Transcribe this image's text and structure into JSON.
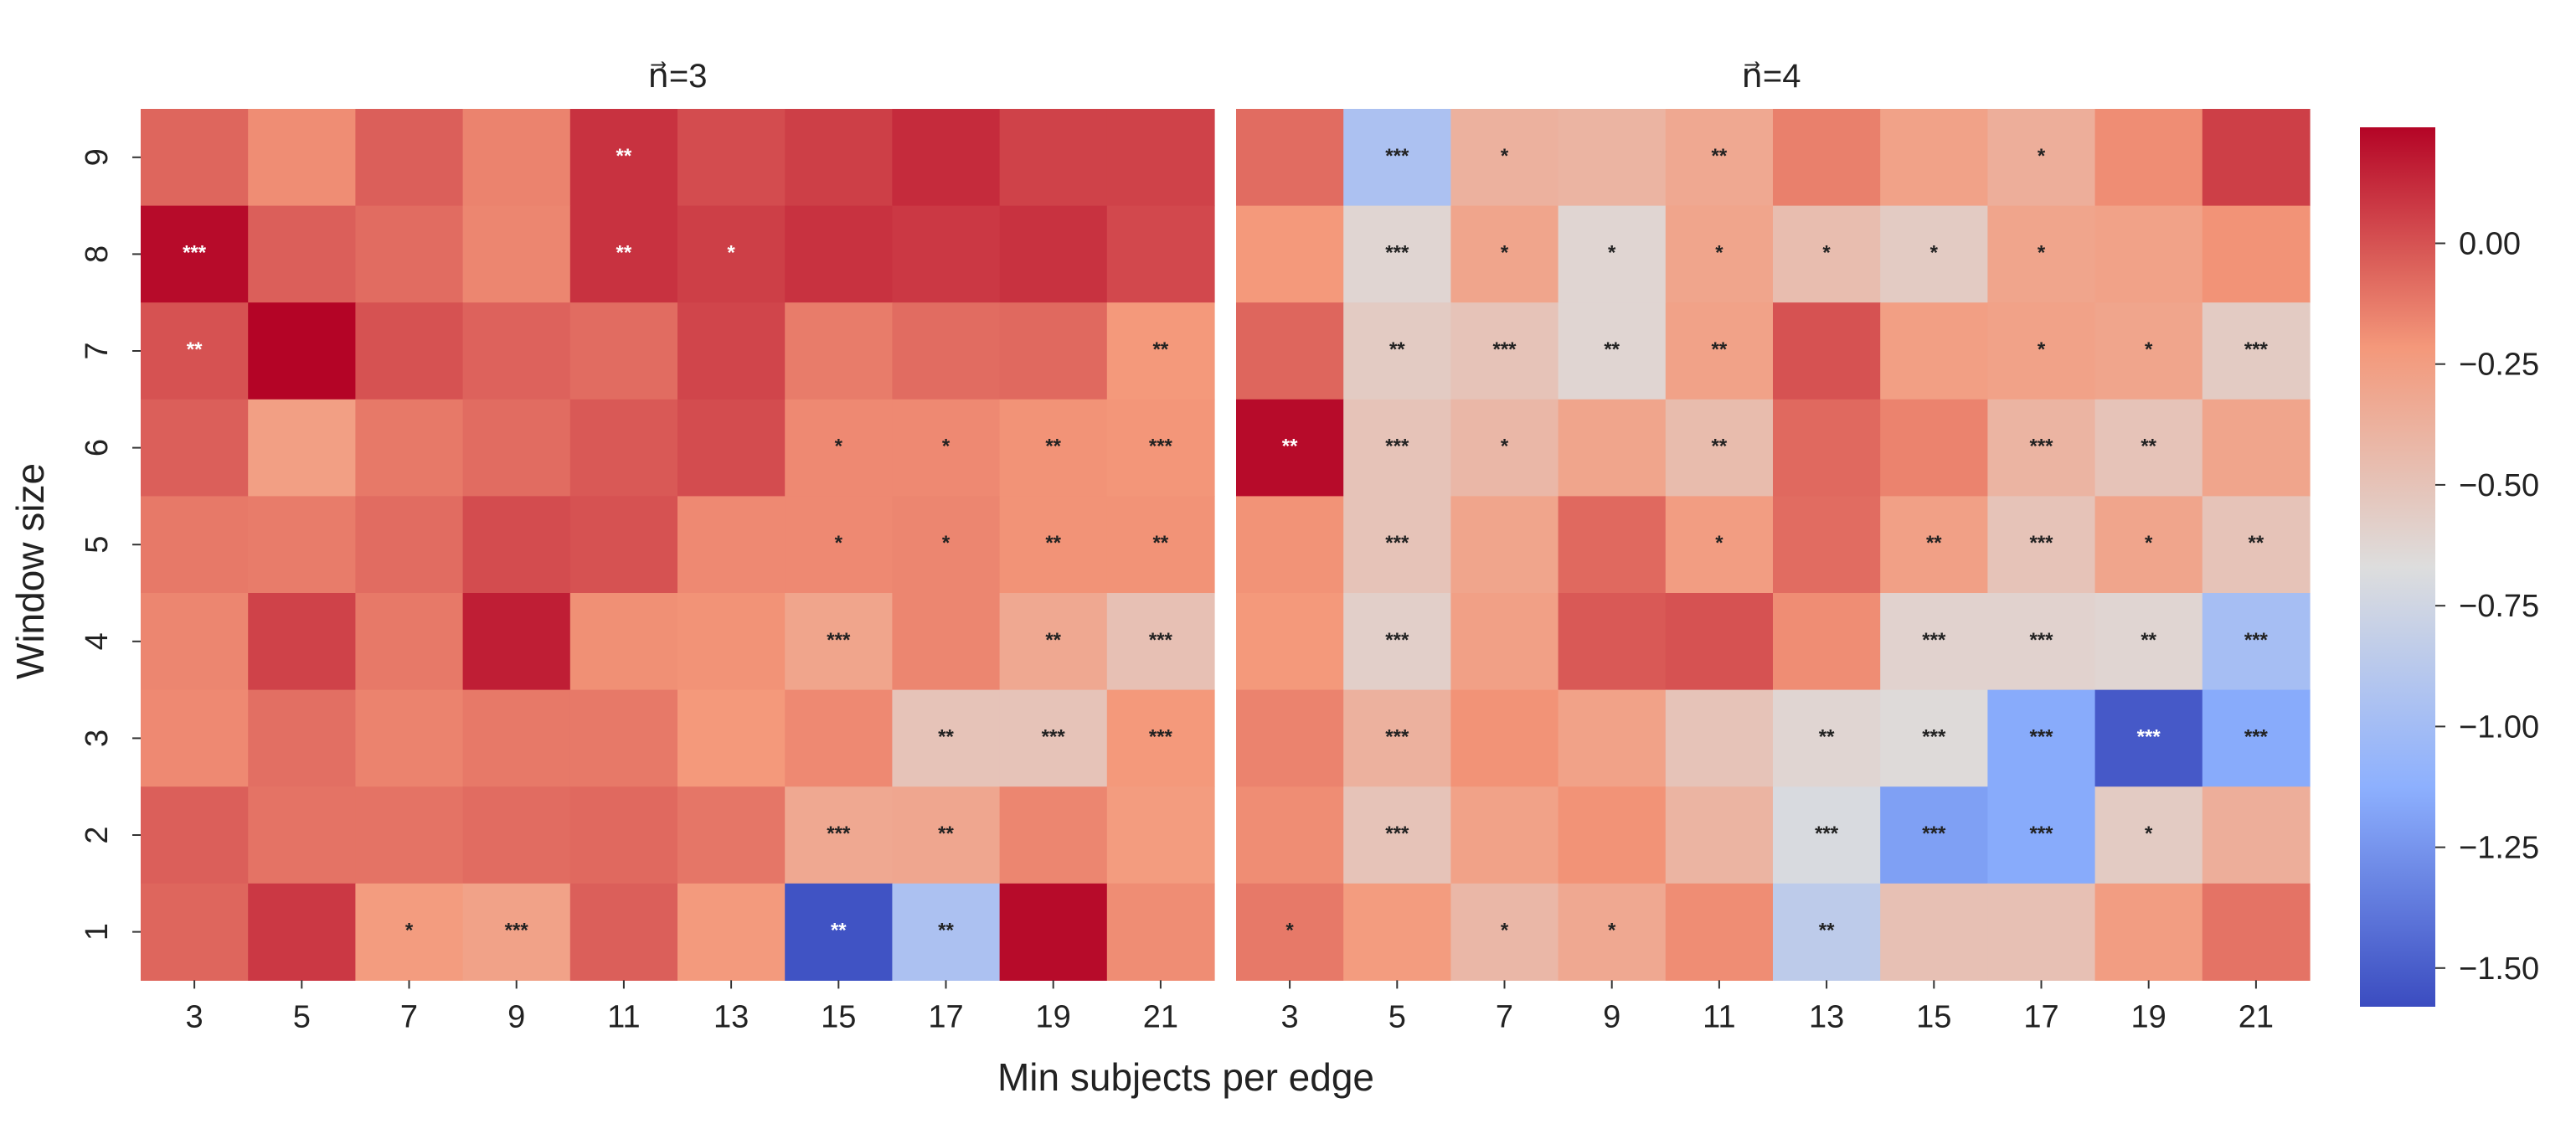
{
  "chart_data": {
    "type": "heatmap",
    "figure_title": "",
    "xlabel": "Min subjects per edge",
    "ylabel": "Window size",
    "x_categories": [
      3,
      5,
      7,
      9,
      11,
      13,
      15,
      17,
      19,
      21
    ],
    "y_categories": [
      9,
      8,
      7,
      6,
      5,
      4,
      3,
      2,
      1
    ],
    "colormap": "coolwarm",
    "colorbar": {
      "vmin": -1.58,
      "vmax": 0.24,
      "ticks": [
        0.0,
        -0.25,
        -0.5,
        -0.75,
        -1.0,
        -1.25,
        -1.5
      ],
      "tick_labels": [
        "0.00",
        "−0.25",
        "−0.50",
        "−0.75",
        "−1.00",
        "−1.25",
        "−1.50"
      ]
    },
    "panels": [
      {
        "title": "n⃗=3",
        "values": [
          [
            -0.06,
            -0.18,
            -0.04,
            -0.15,
            0.1,
            0.02,
            0.06,
            0.12,
            0.05,
            0.05
          ],
          [
            0.22,
            -0.04,
            -0.08,
            -0.16,
            0.1,
            0.06,
            0.1,
            0.08,
            0.1,
            0.03
          ],
          [
            0.0,
            0.24,
            0.0,
            -0.05,
            -0.08,
            0.04,
            -0.13,
            -0.08,
            -0.07,
            -0.22
          ],
          [
            -0.04,
            -0.26,
            -0.12,
            -0.08,
            -0.02,
            0.02,
            -0.17,
            -0.17,
            -0.2,
            -0.21
          ],
          [
            -0.12,
            -0.13,
            -0.08,
            0.02,
            0.0,
            -0.17,
            -0.17,
            -0.16,
            -0.2,
            -0.2
          ],
          [
            -0.16,
            0.05,
            -0.12,
            0.16,
            -0.19,
            -0.2,
            -0.3,
            -0.16,
            -0.32,
            -0.48
          ],
          [
            -0.17,
            -0.09,
            -0.15,
            -0.12,
            -0.12,
            -0.22,
            -0.17,
            -0.5,
            -0.5,
            -0.22
          ],
          [
            -0.04,
            -0.1,
            -0.1,
            -0.08,
            -0.07,
            -0.11,
            -0.32,
            -0.31,
            -0.16,
            -0.24
          ],
          [
            -0.06,
            0.08,
            -0.24,
            -0.28,
            -0.04,
            -0.23,
            -1.55,
            -0.95,
            0.22,
            -0.18
          ]
        ],
        "significance": [
          [
            "",
            "",
            "",
            "",
            "**",
            "",
            "",
            "",
            "",
            ""
          ],
          [
            "***",
            "",
            "",
            "",
            "**",
            "*",
            "",
            "",
            "",
            ""
          ],
          [
            "**",
            "",
            "",
            "",
            "",
            "",
            "",
            "",
            "",
            "**"
          ],
          [
            "",
            "",
            "",
            "",
            "",
            "",
            "*",
            "*",
            "**",
            "***"
          ],
          [
            "",
            "",
            "",
            "",
            "",
            "",
            "*",
            "*",
            "**",
            "**"
          ],
          [
            "",
            "",
            "",
            "",
            "",
            "",
            "***",
            "",
            "**",
            "***"
          ],
          [
            "",
            "",
            "",
            "",
            "",
            "",
            "",
            "**",
            "***",
            "***"
          ],
          [
            "",
            "",
            "",
            "",
            "",
            "",
            "***",
            "**",
            "",
            ""
          ],
          [
            "",
            "",
            "*",
            "***",
            "",
            "",
            "**",
            "**",
            "",
            ""
          ]
        ]
      },
      {
        "title": "n⃗=4",
        "values": [
          [
            -0.08,
            -0.95,
            -0.38,
            -0.4,
            -0.32,
            -0.14,
            -0.28,
            -0.36,
            -0.18,
            0.06
          ],
          [
            -0.22,
            -0.62,
            -0.3,
            -0.62,
            -0.3,
            -0.46,
            -0.55,
            -0.3,
            -0.28,
            -0.2
          ],
          [
            -0.06,
            -0.55,
            -0.5,
            -0.62,
            -0.28,
            0.0,
            -0.26,
            -0.28,
            -0.3,
            -0.55
          ],
          [
            0.22,
            -0.5,
            -0.42,
            -0.3,
            -0.45,
            -0.07,
            -0.15,
            -0.4,
            -0.5,
            -0.3
          ],
          [
            -0.2,
            -0.5,
            -0.3,
            -0.07,
            -0.25,
            -0.08,
            -0.27,
            -0.5,
            -0.3,
            -0.5
          ],
          [
            -0.22,
            -0.58,
            -0.27,
            -0.02,
            0.0,
            -0.18,
            -0.6,
            -0.6,
            -0.62,
            -0.98
          ],
          [
            -0.15,
            -0.38,
            -0.2,
            -0.28,
            -0.5,
            -0.62,
            -0.65,
            -1.15,
            -1.52,
            -1.15
          ],
          [
            -0.18,
            -0.5,
            -0.28,
            -0.2,
            -0.4,
            -0.7,
            -1.2,
            -1.15,
            -0.55,
            -0.36
          ],
          [
            -0.12,
            -0.24,
            -0.42,
            -0.32,
            -0.18,
            -0.85,
            -0.48,
            -0.48,
            -0.25,
            -0.1
          ]
        ],
        "significance": [
          [
            "",
            "***",
            "*",
            "",
            "**",
            "",
            "",
            "*",
            "",
            ""
          ],
          [
            "",
            "***",
            "*",
            "*",
            "*",
            "*",
            "*",
            "*",
            "",
            ""
          ],
          [
            "",
            "**",
            "***",
            "**",
            "**",
            "",
            "",
            "*",
            "*",
            "***"
          ],
          [
            "**",
            "***",
            "*",
            "",
            "**",
            "",
            "",
            "***",
            "**",
            ""
          ],
          [
            "",
            "***",
            "",
            "",
            "*",
            "",
            "**",
            "***",
            "*",
            "**"
          ],
          [
            "",
            "***",
            "",
            "",
            "",
            "",
            "***",
            "***",
            "**",
            "***"
          ],
          [
            "",
            "***",
            "",
            "",
            "",
            "**",
            "***",
            "***",
            "***",
            "***"
          ],
          [
            "",
            "***",
            "",
            "",
            "",
            "***",
            "***",
            "***",
            "*",
            ""
          ],
          [
            "*",
            "",
            "*",
            "*",
            "",
            "**",
            "",
            "",
            "",
            ""
          ]
        ]
      }
    ]
  }
}
